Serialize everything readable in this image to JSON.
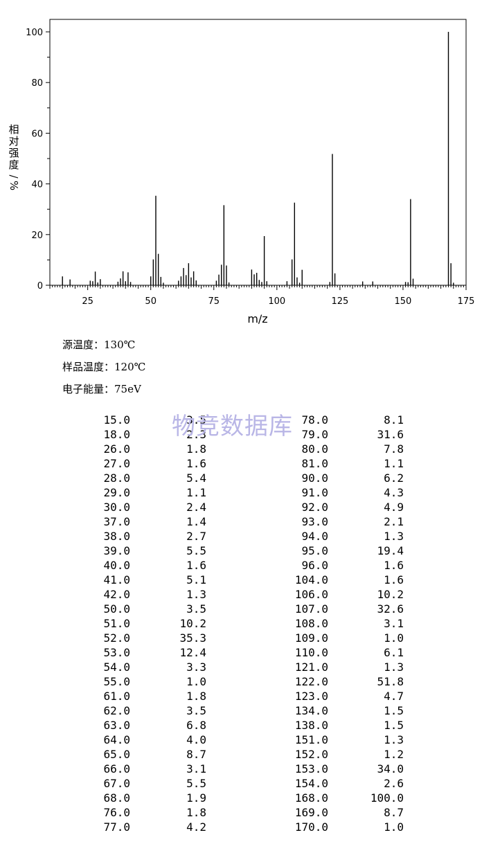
{
  "chart_data": {
    "type": "bar",
    "x": [
      15,
      18,
      26,
      27,
      28,
      29,
      30,
      37,
      38,
      39,
      40,
      41,
      42,
      50,
      51,
      52,
      53,
      54,
      55,
      61,
      62,
      63,
      64,
      65,
      66,
      67,
      68,
      76,
      77,
      78,
      79,
      80,
      81,
      90,
      91,
      92,
      93,
      94,
      95,
      96,
      104,
      106,
      107,
      108,
      109,
      110,
      121,
      122,
      123,
      134,
      138,
      151,
      152,
      153,
      154,
      168,
      169,
      170
    ],
    "values": [
      3.5,
      2.3,
      1.8,
      1.6,
      5.4,
      1.1,
      2.4,
      1.4,
      2.7,
      5.5,
      1.6,
      5.1,
      1.3,
      3.5,
      10.2,
      35.3,
      12.4,
      3.3,
      1.0,
      1.8,
      3.5,
      6.8,
      4.0,
      8.7,
      3.1,
      5.5,
      1.9,
      1.8,
      4.2,
      8.1,
      31.6,
      7.8,
      1.1,
      6.2,
      4.3,
      4.9,
      2.1,
      1.3,
      19.4,
      1.6,
      1.6,
      10.2,
      32.6,
      3.1,
      1.0,
      6.1,
      1.3,
      51.8,
      4.7,
      1.5,
      1.5,
      1.3,
      1.2,
      34.0,
      2.6,
      100.0,
      8.7,
      1.0
    ],
    "xlabel": "m/z",
    "ylabel": "相对强度/%",
    "xlim": [
      10,
      175
    ],
    "ylim": [
      0,
      100
    ],
    "xticks": [
      "25",
      "50",
      "75",
      "100",
      "125",
      "150",
      "175"
    ],
    "yticks": [
      "0",
      "20",
      "40",
      "60",
      "80",
      "100"
    ],
    "grid": false
  },
  "conditions": [
    {
      "label": "源温度：",
      "value": "130℃"
    },
    {
      "label": "样品温度：",
      "value": "120℃"
    },
    {
      "label": "电子能量：",
      "value": "75eV"
    }
  ],
  "watermark": "物竞数据库",
  "table": {
    "left": [
      [
        "15.0",
        "3.5"
      ],
      [
        "18.0",
        "2.3"
      ],
      [
        "26.0",
        "1.8"
      ],
      [
        "27.0",
        "1.6"
      ],
      [
        "28.0",
        "5.4"
      ],
      [
        "29.0",
        "1.1"
      ],
      [
        "30.0",
        "2.4"
      ],
      [
        "37.0",
        "1.4"
      ],
      [
        "38.0",
        "2.7"
      ],
      [
        "39.0",
        "5.5"
      ],
      [
        "40.0",
        "1.6"
      ],
      [
        "41.0",
        "5.1"
      ],
      [
        "42.0",
        "1.3"
      ],
      [
        "50.0",
        "3.5"
      ],
      [
        "51.0",
        "10.2"
      ],
      [
        "52.0",
        "35.3"
      ],
      [
        "53.0",
        "12.4"
      ],
      [
        "54.0",
        "3.3"
      ],
      [
        "55.0",
        "1.0"
      ],
      [
        "61.0",
        "1.8"
      ],
      [
        "62.0",
        "3.5"
      ],
      [
        "63.0",
        "6.8"
      ],
      [
        "64.0",
        "4.0"
      ],
      [
        "65.0",
        "8.7"
      ],
      [
        "66.0",
        "3.1"
      ],
      [
        "67.0",
        "5.5"
      ],
      [
        "68.0",
        "1.9"
      ],
      [
        "76.0",
        "1.8"
      ],
      [
        "77.0",
        "4.2"
      ]
    ],
    "right": [
      [
        "78.0",
        "8.1"
      ],
      [
        "79.0",
        "31.6"
      ],
      [
        "80.0",
        "7.8"
      ],
      [
        "81.0",
        "1.1"
      ],
      [
        "90.0",
        "6.2"
      ],
      [
        "91.0",
        "4.3"
      ],
      [
        "92.0",
        "4.9"
      ],
      [
        "93.0",
        "2.1"
      ],
      [
        "94.0",
        "1.3"
      ],
      [
        "95.0",
        "19.4"
      ],
      [
        "96.0",
        "1.6"
      ],
      [
        "104.0",
        "1.6"
      ],
      [
        "106.0",
        "10.2"
      ],
      [
        "107.0",
        "32.6"
      ],
      [
        "108.0",
        "3.1"
      ],
      [
        "109.0",
        "1.0"
      ],
      [
        "110.0",
        "6.1"
      ],
      [
        "121.0",
        "1.3"
      ],
      [
        "122.0",
        "51.8"
      ],
      [
        "123.0",
        "4.7"
      ],
      [
        "134.0",
        "1.5"
      ],
      [
        "138.0",
        "1.5"
      ],
      [
        "151.0",
        "1.3"
      ],
      [
        "152.0",
        "1.2"
      ],
      [
        "153.0",
        "34.0"
      ],
      [
        "154.0",
        "2.6"
      ],
      [
        "168.0",
        "100.0"
      ],
      [
        "169.0",
        "8.7"
      ],
      [
        "170.0",
        "1.0"
      ]
    ]
  }
}
